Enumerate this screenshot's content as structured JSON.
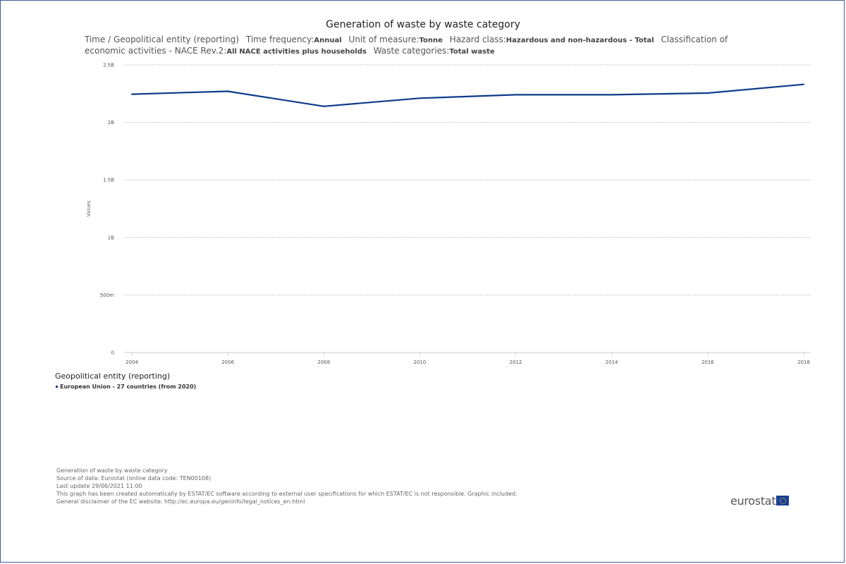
{
  "chart_data": {
    "type": "line",
    "title": "Generation of waste by waste category",
    "subtitle": [
      {
        "label": "Time / Geopolitical entity (reporting)",
        "value": ""
      },
      {
        "label": "Time frequency:",
        "value": "Annual"
      },
      {
        "label": "Unit of measure:",
        "value": "Tonne"
      },
      {
        "label": "Hazard class:",
        "value": "Hazardous and non-hazardous - Total"
      },
      {
        "label": "Classification of economic activities - NACE Rev.2:",
        "value": "All NACE activities plus households"
      },
      {
        "label": "Waste categories:",
        "value": "Total waste"
      }
    ],
    "ylabel": "Values",
    "xlabel": "",
    "ylim": [
      0,
      2500000000
    ],
    "yticks": [
      {
        "value": 0,
        "label": "0"
      },
      {
        "value": 500000000,
        "label": "500m"
      },
      {
        "value": 1000000000,
        "label": "1B"
      },
      {
        "value": 1500000000,
        "label": "1.5B"
      },
      {
        "value": 2000000000,
        "label": "2B"
      },
      {
        "value": 2500000000,
        "label": "2.5B"
      }
    ],
    "x": [
      2004,
      2006,
      2008,
      2010,
      2012,
      2014,
      2016,
      2018
    ],
    "xticks": [
      "2004",
      "2006",
      "2008",
      "2010",
      "2012",
      "2014",
      "2016",
      "2018"
    ],
    "series": [
      {
        "name": "European Union - 27 countries (from 2020)",
        "color": "#0e3a8a",
        "values": [
          2245000000,
          2270000000,
          2140000000,
          2210000000,
          2240000000,
          2240000000,
          2255000000,
          2330000000
        ]
      }
    ],
    "grid": true,
    "legend_title": "Geopolitical entity (reporting)",
    "legend_placement": "bottom-left"
  },
  "footer": {
    "lines": [
      "Generation of waste by waste category",
      "Source of data: Eurostat (online data code: TEN00108)",
      "Last update 29/06/2021 11:00",
      "This graph has been created automatically by ESTAT/EC software according to external user specifications for which ESTAT/EC is not responsible. Graphic included.",
      "General disclaimer of the EC website: http://ec.europa.eu/geninfo/legal_notices_en.html"
    ]
  },
  "logo": {
    "text": "eurostat",
    "flag_icon": "eu-flag-icon"
  }
}
